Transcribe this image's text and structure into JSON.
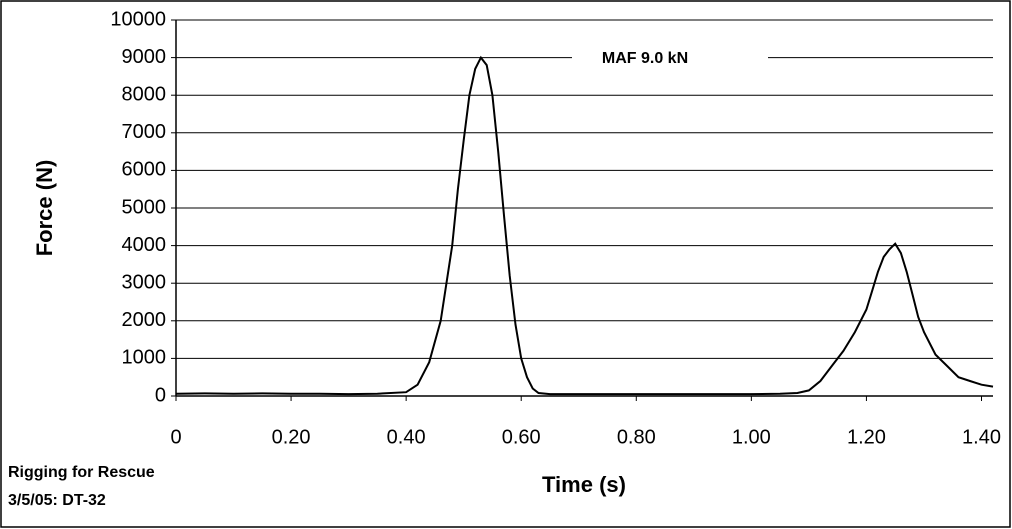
{
  "chart_data": {
    "type": "line",
    "x_label": "Time (s)",
    "y_label": "Force (N)",
    "annotation": "MAF 9.0 kN",
    "notes": [
      "Rigging for Rescue",
      "3/5/05: DT-32"
    ],
    "x": [
      0,
      0.05,
      0.1,
      0.15,
      0.2,
      0.25,
      0.3,
      0.35,
      0.4,
      0.42,
      0.44,
      0.46,
      0.48,
      0.49,
      0.5,
      0.51,
      0.52,
      0.53,
      0.54,
      0.55,
      0.56,
      0.57,
      0.58,
      0.59,
      0.6,
      0.61,
      0.62,
      0.63,
      0.65,
      0.7,
      0.8,
      0.9,
      1.0,
      1.05,
      1.08,
      1.1,
      1.12,
      1.14,
      1.16,
      1.18,
      1.2,
      1.21,
      1.22,
      1.23,
      1.24,
      1.25,
      1.26,
      1.27,
      1.28,
      1.29,
      1.3,
      1.32,
      1.34,
      1.36,
      1.38,
      1.4,
      1.42
    ],
    "values": [
      60,
      70,
      60,
      70,
      60,
      60,
      50,
      60,
      100,
      300,
      900,
      2000,
      4000,
      5500,
      6800,
      8000,
      8700,
      9000,
      8800,
      8000,
      6500,
      4800,
      3200,
      1900,
      1000,
      500,
      200,
      80,
      50,
      50,
      50,
      50,
      50,
      60,
      80,
      150,
      400,
      800,
      1200,
      1700,
      2300,
      2800,
      3300,
      3700,
      3900,
      4050,
      3800,
      3300,
      2700,
      2100,
      1700,
      1100,
      800,
      500,
      400,
      300,
      250
    ],
    "color": "#000000",
    "xlim": [
      0,
      1.42
    ],
    "xticks": [
      0,
      {
        "value": 0.2,
        "label": "0.20"
      },
      {
        "value": 0.4,
        "label": "0.40"
      },
      {
        "value": 0.6,
        "label": "0.60"
      },
      {
        "value": 0.8,
        "label": "0.80"
      },
      {
        "value": 1.0,
        "label": "1.00"
      },
      {
        "value": 1.2,
        "label": "1.20"
      },
      {
        "value": 1.4,
        "label": "1.40"
      }
    ],
    "ylim": [
      0,
      10000
    ],
    "yticks": [
      0,
      1000,
      2000,
      3000,
      4000,
      5000,
      6000,
      7000,
      8000,
      9000,
      10000
    ],
    "grid": true
  }
}
